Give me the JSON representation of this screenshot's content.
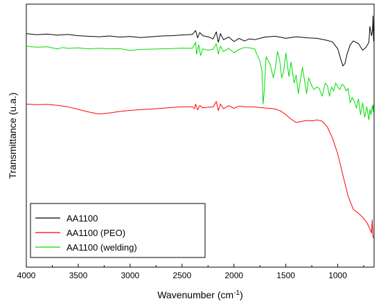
{
  "chart_data": {
    "type": "line",
    "title": "",
    "xlabel": "Wavenumber (cm",
    "xlabel_sup": "-1",
    "xlabel_close": ")",
    "ylabel": "Transmittance (u.a.)",
    "xlim": [
      4000,
      650
    ],
    "x_reversed": true,
    "ylim": [
      0,
      100
    ],
    "x_ticks": [
      4000,
      3500,
      3000,
      2500,
      2000,
      1500,
      1000
    ],
    "x_tick_labels": [
      "4000",
      "3500",
      "3000",
      "2500",
      "2000",
      "1500",
      "1000"
    ],
    "y_ticks_labeled": false,
    "grid": false,
    "legend_position": "bottom-left",
    "series": [
      {
        "name": "AA1100",
        "color": "#000000",
        "points": [
          [
            4000,
            88.8
          ],
          [
            3900,
            88.4
          ],
          [
            3800,
            88.6
          ],
          [
            3700,
            88.2
          ],
          [
            3600,
            88.5
          ],
          [
            3500,
            88.0
          ],
          [
            3400,
            87.8
          ],
          [
            3300,
            87.6
          ],
          [
            3200,
            87.9
          ],
          [
            3100,
            87.5
          ],
          [
            3000,
            87.7
          ],
          [
            2900,
            87.3
          ],
          [
            2800,
            87.6
          ],
          [
            2700,
            87.9
          ],
          [
            2600,
            88.0
          ],
          [
            2500,
            88.3
          ],
          [
            2400,
            88.5
          ],
          [
            2370,
            90.0
          ],
          [
            2350,
            87.2
          ],
          [
            2330,
            89.2
          ],
          [
            2300,
            88.0
          ],
          [
            2250,
            87.6
          ],
          [
            2200,
            86.8
          ],
          [
            2170,
            89.5
          ],
          [
            2150,
            85.5
          ],
          [
            2130,
            88.8
          ],
          [
            2100,
            86.5
          ],
          [
            2050,
            87.5
          ],
          [
            2000,
            85.8
          ],
          [
            1950,
            87.0
          ],
          [
            1900,
            86.0
          ],
          [
            1850,
            86.8
          ],
          [
            1800,
            86.5
          ],
          [
            1700,
            87.5
          ],
          [
            1600,
            87.8
          ],
          [
            1500,
            87.0
          ],
          [
            1400,
            87.6
          ],
          [
            1300,
            87.2
          ],
          [
            1200,
            87.0
          ],
          [
            1100,
            86.2
          ],
          [
            1050,
            85.6
          ],
          [
            1000,
            83.0
          ],
          [
            970,
            79.0
          ],
          [
            950,
            76.5
          ],
          [
            930,
            77.5
          ],
          [
            910,
            81.0
          ],
          [
            880,
            84.5
          ],
          [
            850,
            86.0
          ],
          [
            800,
            85.0
          ],
          [
            760,
            82.5
          ],
          [
            730,
            83.5
          ],
          [
            700,
            85.5
          ],
          [
            690,
            91.5
          ],
          [
            675,
            88.0
          ],
          [
            665,
            90.0
          ],
          [
            660,
            95.5
          ],
          [
            655,
            86.0
          ],
          [
            652,
            90.5
          ]
        ]
      },
      {
        "name": "AA1100 (PEO)",
        "color": "#ff0000",
        "points": [
          [
            4000,
            62.0
          ],
          [
            3900,
            61.8
          ],
          [
            3800,
            61.9
          ],
          [
            3700,
            61.5
          ],
          [
            3600,
            61.0
          ],
          [
            3500,
            60.0
          ],
          [
            3400,
            59.0
          ],
          [
            3300,
            58.2
          ],
          [
            3200,
            58.6
          ],
          [
            3100,
            59.2
          ],
          [
            3000,
            59.6
          ],
          [
            2900,
            59.9
          ],
          [
            2800,
            60.1
          ],
          [
            2700,
            60.4
          ],
          [
            2600,
            60.7
          ],
          [
            2500,
            61.0
          ],
          [
            2400,
            61.0
          ],
          [
            2380,
            60.2
          ],
          [
            2370,
            62.0
          ],
          [
            2350,
            59.8
          ],
          [
            2330,
            61.5
          ],
          [
            2300,
            60.6
          ],
          [
            2250,
            60.8
          ],
          [
            2200,
            60.9
          ],
          [
            2170,
            63.0
          ],
          [
            2150,
            59.5
          ],
          [
            2130,
            62.0
          ],
          [
            2100,
            60.2
          ],
          [
            2050,
            61.4
          ],
          [
            2000,
            60.4
          ],
          [
            1950,
            61.2
          ],
          [
            1900,
            61.0
          ],
          [
            1850,
            61.0
          ],
          [
            1800,
            60.9
          ],
          [
            1700,
            60.5
          ],
          [
            1650,
            60.4
          ],
          [
            1600,
            60.1
          ],
          [
            1550,
            59.4
          ],
          [
            1500,
            58.0
          ],
          [
            1450,
            56.3
          ],
          [
            1400,
            55.0
          ],
          [
            1350,
            55.4
          ],
          [
            1300,
            55.8
          ],
          [
            1250,
            55.6
          ],
          [
            1200,
            56.0
          ],
          [
            1150,
            55.5
          ],
          [
            1100,
            53.3
          ],
          [
            1050,
            49.0
          ],
          [
            1000,
            43.0
          ],
          [
            950,
            35.0
          ],
          [
            900,
            27.0
          ],
          [
            850,
            22.0
          ],
          [
            800,
            20.5
          ],
          [
            760,
            19.0
          ],
          [
            720,
            17.0
          ],
          [
            690,
            14.5
          ],
          [
            675,
            13.0
          ],
          [
            668,
            18.0
          ],
          [
            662,
            12.0
          ],
          [
            655,
            11.0
          ]
        ]
      },
      {
        "name": "AA1100 (welding)",
        "color": "#00dd00",
        "points": [
          [
            4000,
            84.0
          ],
          [
            3900,
            83.6
          ],
          [
            3800,
            83.8
          ],
          [
            3700,
            83.0
          ],
          [
            3650,
            83.5
          ],
          [
            3600,
            83.2
          ],
          [
            3500,
            83.4
          ],
          [
            3400,
            83.0
          ],
          [
            3300,
            83.2
          ],
          [
            3200,
            83.0
          ],
          [
            3100,
            83.1
          ],
          [
            3000,
            82.4
          ],
          [
            2900,
            82.8
          ],
          [
            2800,
            82.9
          ],
          [
            2700,
            83.0
          ],
          [
            2600,
            83.1
          ],
          [
            2500,
            83.3
          ],
          [
            2400,
            83.2
          ],
          [
            2370,
            85.5
          ],
          [
            2360,
            81.0
          ],
          [
            2340,
            84.5
          ],
          [
            2320,
            80.5
          ],
          [
            2300,
            83.0
          ],
          [
            2250,
            82.5
          ],
          [
            2200,
            82.8
          ],
          [
            2170,
            85.0
          ],
          [
            2150,
            81.0
          ],
          [
            2130,
            84.0
          ],
          [
            2100,
            82.0
          ],
          [
            2050,
            83.2
          ],
          [
            2000,
            81.5
          ],
          [
            1950,
            82.8
          ],
          [
            1900,
            83.5
          ],
          [
            1850,
            83.4
          ],
          [
            1800,
            83.0
          ],
          [
            1770,
            80.0
          ],
          [
            1750,
            78.5
          ],
          [
            1730,
            74.5
          ],
          [
            1720,
            62.0
          ],
          [
            1710,
            66.0
          ],
          [
            1690,
            80.0
          ],
          [
            1650,
            77.0
          ],
          [
            1620,
            72.0
          ],
          [
            1600,
            76.0
          ],
          [
            1580,
            82.0
          ],
          [
            1560,
            79.0
          ],
          [
            1540,
            72.0
          ],
          [
            1520,
            74.5
          ],
          [
            1500,
            81.5
          ],
          [
            1470,
            72.5
          ],
          [
            1450,
            78.0
          ],
          [
            1420,
            70.0
          ],
          [
            1400,
            73.0
          ],
          [
            1380,
            66.0
          ],
          [
            1360,
            71.0
          ],
          [
            1340,
            76.0
          ],
          [
            1300,
            66.0
          ],
          [
            1280,
            72.0
          ],
          [
            1250,
            69.0
          ],
          [
            1230,
            67.5
          ],
          [
            1200,
            68.5
          ],
          [
            1180,
            68.0
          ],
          [
            1150,
            65.0
          ],
          [
            1120,
            70.0
          ],
          [
            1100,
            69.0
          ],
          [
            1080,
            65.0
          ],
          [
            1060,
            68.5
          ],
          [
            1040,
            67.0
          ],
          [
            1020,
            70.0
          ],
          [
            1000,
            68.5
          ],
          [
            980,
            67.5
          ],
          [
            960,
            69.5
          ],
          [
            940,
            69.0
          ],
          [
            920,
            67.0
          ],
          [
            900,
            68.0
          ],
          [
            880,
            62.5
          ],
          [
            860,
            64.5
          ],
          [
            840,
            63.0
          ],
          [
            820,
            60.5
          ],
          [
            800,
            64.0
          ],
          [
            780,
            58.0
          ],
          [
            760,
            62.5
          ],
          [
            740,
            57.0
          ],
          [
            720,
            61.0
          ],
          [
            700,
            56.0
          ],
          [
            690,
            60.0
          ],
          [
            680,
            58.0
          ],
          [
            672,
            60.0
          ],
          [
            665,
            61.5
          ],
          [
            660,
            59.0
          ],
          [
            655,
            62.0
          ]
        ]
      }
    ]
  }
}
